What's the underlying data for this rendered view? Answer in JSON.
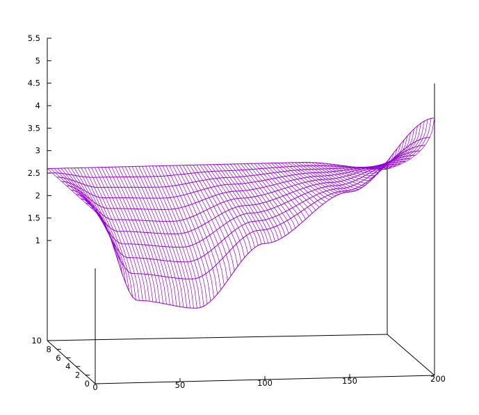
{
  "chart_data": {
    "type": "surface",
    "title": "",
    "xlabel": "",
    "ylabel": "",
    "zlabel": "",
    "xlim": [
      0,
      200
    ],
    "ylim": [
      0,
      10
    ],
    "zlim": [
      0,
      5.5
    ],
    "xticks": [
      "0",
      "50",
      "100",
      "150",
      "200"
    ],
    "yticks": [
      "0",
      "2",
      "4",
      "6",
      "8",
      "10"
    ],
    "zticks": [
      "1",
      "1.5",
      "2",
      "2.5",
      "3",
      "3.5",
      "4",
      "4.5",
      "5",
      "5.5"
    ],
    "surface_color": "#9400d3",
    "grid": false,
    "legend": "none",
    "surface_profiles": [
      {
        "y": 0,
        "z": [
          2.6,
          0.6,
          0.4,
          1.8,
          2.9,
          4.5
        ]
      },
      {
        "y": 10,
        "z": [
          2.6,
          2.6,
          2.6,
          2.6,
          2.6,
          2.4
        ]
      }
    ],
    "surface_profile_x": [
      0,
      25,
      60,
      100,
      150,
      200
    ]
  }
}
